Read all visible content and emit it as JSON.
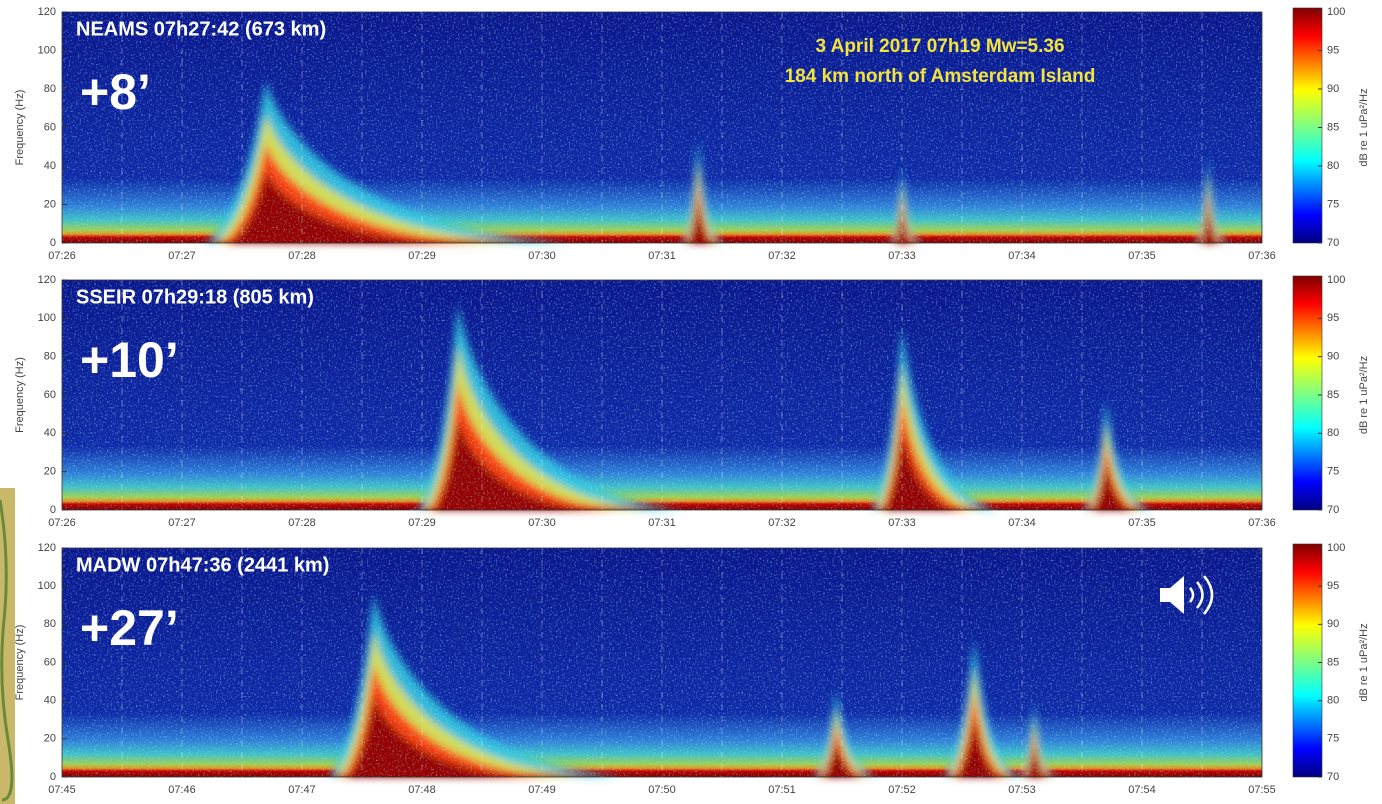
{
  "chart_data": [
    {
      "type": "spectrogram",
      "title": "NEAMS 07h27:42 (673 km)",
      "offset": "+8’",
      "annotation": [
        "3 April 2017 07h19 Mw=5.36",
        "184 km north of Amsterdam Island"
      ],
      "categories": [
        "07:26",
        "07:27",
        "07:28",
        "07:29",
        "07:30",
        "07:31",
        "07:32",
        "07:33",
        "07:34",
        "07:35",
        "07:36"
      ],
      "y_label": "Frequency (Hz)",
      "ylim": [
        0,
        120
      ],
      "yticks": [
        0,
        20,
        40,
        60,
        80,
        100,
        120
      ],
      "colorbar": {
        "label": "dB re 1 uPa²/Hz",
        "lim": [
          70,
          100
        ],
        "ticks": [
          70,
          75,
          80,
          85,
          90,
          95,
          100
        ]
      }
    },
    {
      "type": "spectrogram",
      "title": "SSEIR 07h29:18 (805 km)",
      "offset": "+10’",
      "categories": [
        "07:26",
        "07:27",
        "07:28",
        "07:29",
        "07:30",
        "07:31",
        "07:32",
        "07:33",
        "07:34",
        "07:35",
        "07:36"
      ],
      "y_label": "Frequency (Hz)",
      "ylim": [
        0,
        120
      ],
      "yticks": [
        0,
        20,
        40,
        60,
        80,
        100,
        120
      ],
      "colorbar": {
        "label": "dB re 1 uPa²/Hz",
        "lim": [
          70,
          100
        ],
        "ticks": [
          70,
          75,
          80,
          85,
          90,
          95,
          100
        ]
      }
    },
    {
      "type": "spectrogram",
      "title": "MADW 07h47:36 (2441 km)",
      "offset": "+27’",
      "categories": [
        "07:45",
        "07:46",
        "07:47",
        "07:48",
        "07:49",
        "07:50",
        "07:51",
        "07:52",
        "07:53",
        "07:54",
        "07:55"
      ],
      "y_label": "Frequency (Hz)",
      "ylim": [
        0,
        120
      ],
      "yticks": [
        0,
        20,
        40,
        60,
        80,
        100,
        120
      ],
      "colorbar": {
        "label": "dB re 1 uPa²/Hz",
        "lim": [
          70,
          100
        ],
        "ticks": [
          70,
          75,
          80,
          85,
          90,
          95,
          100
        ]
      }
    }
  ]
}
